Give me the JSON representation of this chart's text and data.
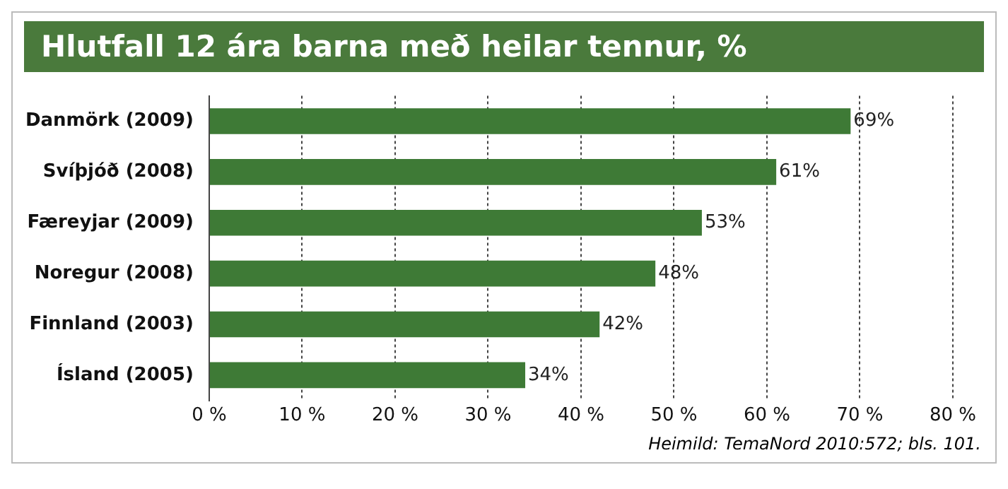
{
  "chart_data": {
    "type": "bar",
    "orientation": "horizontal",
    "title": "Hlutfall 12 ára barna með heilar tennur, %",
    "categories": [
      "Danmörk (2009)",
      "Svíþjóð (2008)",
      "Færeyjar (2009)",
      "Noregur (2008)",
      "Finnland (2003)",
      "Ísland (2005)"
    ],
    "values": [
      69,
      61,
      53,
      48,
      42,
      34
    ],
    "value_labels": [
      "69%",
      "61%",
      "53%",
      "48%",
      "42%",
      "34%"
    ],
    "color": "#3e7a36",
    "xlim": [
      0,
      80
    ],
    "xticks": [
      {
        "value": 0,
        "label": "0 %"
      },
      {
        "value": 10,
        "label": "10 %"
      },
      {
        "value": 20,
        "label": "20 %"
      },
      {
        "value": 30,
        "label": "30 %"
      },
      {
        "value": 40,
        "label": "40 %"
      },
      {
        "value": 50,
        "label": "50 %"
      },
      {
        "value": 60,
        "label": "60 %"
      },
      {
        "value": 70,
        "label": "70 %"
      },
      {
        "value": 80,
        "label": "80 %"
      }
    ],
    "grid": "x",
    "legend": false,
    "annotations": [
      "Heimild: TemaNord 2010:572; bls. 101."
    ]
  }
}
